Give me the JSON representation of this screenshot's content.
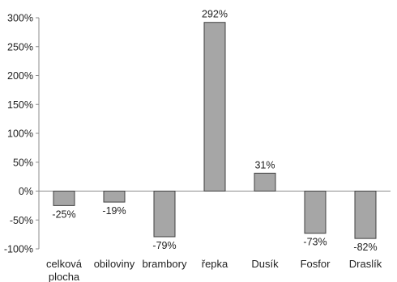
{
  "chart_data": {
    "type": "bar",
    "categories": [
      [
        "celková",
        "plocha"
      ],
      [
        "obiloviny"
      ],
      [
        "brambory"
      ],
      [
        "řepka"
      ],
      [
        "Dusík"
      ],
      [
        "Fosfor"
      ],
      [
        "Draslík"
      ]
    ],
    "values": [
      -25,
      -19,
      -79,
      292,
      31,
      -73,
      -82
    ],
    "data_labels": [
      "-25%",
      "-19%",
      "-79%",
      "292%",
      "31%",
      "-73%",
      "-82%"
    ],
    "ylim": [
      -100,
      300
    ],
    "yticks": [
      -100,
      -50,
      0,
      50,
      100,
      150,
      200,
      250,
      300
    ],
    "ytick_labels": [
      "-100%",
      "-50%",
      "0%",
      "50%",
      "100%",
      "150%",
      "200%",
      "250%",
      "300%"
    ],
    "grid": false,
    "title": "",
    "xlabel": "",
    "ylabel": "",
    "colors": {
      "bar_fill": "#a6a6a6",
      "bar_stroke": "#404040",
      "axis": "#8c8c8c"
    }
  }
}
